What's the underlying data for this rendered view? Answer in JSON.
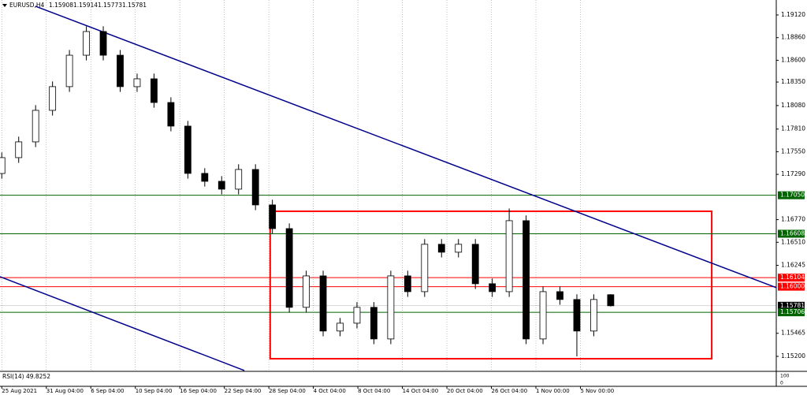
{
  "chart_data": {
    "type": "candlestick",
    "title": "EURUSD,H4",
    "header_values": {
      "open": 1.15908,
      "high": 1.15914,
      "low": 1.15773,
      "close": 1.15781
    },
    "header_labels": [
      "1.15908",
      "1.15914",
      "1.15773",
      "1.15781"
    ],
    "x": [
      0,
      0.38,
      0.76,
      1.14,
      1.52,
      1.9,
      2.28,
      2.66,
      3.04,
      3.42,
      3.8,
      4.18,
      4.56,
      4.94,
      5.32,
      5.7,
      6.08,
      6.46,
      6.84,
      7.22,
      7.6,
      7.98,
      8.36,
      8.74,
      9.12,
      9.5,
      9.88,
      10.26,
      10.64,
      11.02,
      11.4,
      11.78,
      12.16,
      12.54,
      12.92,
      13.3,
      13.68
    ],
    "open": [
      1.173,
      1.17482,
      1.17663,
      1.18025,
      1.18297,
      1.18658,
      1.1893,
      1.18658,
      1.18297,
      1.18387,
      1.18115,
      1.17844,
      1.17301,
      1.1721,
      1.1712,
      1.17346,
      1.16939,
      1.16667,
      1.15763,
      1.16124,
      1.15491,
      1.15581,
      1.15763,
      1.154,
      1.16124,
      1.15943,
      1.16487,
      1.16396,
      1.16487,
      1.16034,
      1.15943,
      1.16758,
      1.154,
      1.15943,
      1.15853,
      1.15491,
      1.15908
    ],
    "high": [
      1.17542,
      1.17723,
      1.18085,
      1.18357,
      1.18718,
      1.1899,
      1.1899,
      1.18718,
      1.18447,
      1.18447,
      1.18175,
      1.17904,
      1.17361,
      1.1727,
      1.17406,
      1.17406,
      1.16999,
      1.16727,
      1.16184,
      1.16184,
      1.15641,
      1.15823,
      1.15823,
      1.16184,
      1.16184,
      1.16547,
      1.16547,
      1.16547,
      1.16547,
      1.16094,
      1.16898,
      1.16818,
      1.16003,
      1.16003,
      1.15913,
      1.15913,
      1.15914
    ],
    "low": [
      1.1724,
      1.17422,
      1.17603,
      1.17965,
      1.18237,
      1.18598,
      1.18598,
      1.18237,
      1.18237,
      1.18055,
      1.17784,
      1.17241,
      1.1715,
      1.1706,
      1.1706,
      1.16879,
      1.16607,
      1.15703,
      1.15703,
      1.15431,
      1.15431,
      1.15521,
      1.1534,
      1.1534,
      1.15883,
      1.15883,
      1.16336,
      1.16336,
      1.15974,
      1.15883,
      1.15883,
      1.1534,
      1.1534,
      1.15793,
      1.152,
      1.15431,
      1.15773
    ],
    "close": [
      1.17482,
      1.17663,
      1.18025,
      1.18297,
      1.18658,
      1.1893,
      1.18658,
      1.18297,
      1.18387,
      1.18115,
      1.17844,
      1.17301,
      1.1721,
      1.1712,
      1.17346,
      1.16939,
      1.16667,
      1.15763,
      1.16124,
      1.15491,
      1.15581,
      1.15763,
      1.154,
      1.16124,
      1.15943,
      1.16487,
      1.16396,
      1.16487,
      1.16034,
      1.15943,
      1.16758,
      1.154,
      1.15943,
      1.15853,
      1.15491,
      1.15853,
      1.15781
    ],
    "up_color": "#ffffff",
    "down_color": "#000000",
    "wick_color": "#000000",
    "xlim": [
      -0.04,
      17.4
    ],
    "ylim": [
      1.15037,
      1.19292
    ],
    "xticks": [
      {
        "value": 0,
        "label": "25 Aug 2021"
      },
      {
        "value": 1,
        "label": "31 Aug 04:00"
      },
      {
        "value": 2,
        "label": "6 Sep 04:00"
      },
      {
        "value": 3,
        "label": "10 Sep 04:00"
      },
      {
        "value": 4,
        "label": "16 Sep 04:00"
      },
      {
        "value": 5,
        "label": "22 Sep 04:00"
      },
      {
        "value": 6,
        "label": "28 Sep 04:00"
      },
      {
        "value": 7,
        "label": "4 Oct 04:00"
      },
      {
        "value": 8,
        "label": "8 Oct 04:00"
      },
      {
        "value": 9,
        "label": "14 Oct 04:00"
      },
      {
        "value": 10,
        "label": "20 Oct 04:00"
      },
      {
        "value": 11,
        "label": "26 Oct 04:00"
      },
      {
        "value": 12,
        "label": "1 Nov 00:00"
      },
      {
        "value": 13,
        "label": "5 Nov 00:00"
      }
    ],
    "yticks": [
      {
        "value": 1.1912,
        "label": "1.19120"
      },
      {
        "value": 1.1886,
        "label": "1.18860"
      },
      {
        "value": 1.186,
        "label": "1.18600"
      },
      {
        "value": 1.1835,
        "label": "1.18350"
      },
      {
        "value": 1.1808,
        "label": "1.18080"
      },
      {
        "value": 1.1781,
        "label": "1.17810"
      },
      {
        "value": 1.1755,
        "label": "1.17550"
      },
      {
        "value": 1.1729,
        "label": "1.17290"
      },
      {
        "value": 1.1677,
        "label": "1.16770"
      },
      {
        "value": 1.1651,
        "label": "1.16510"
      },
      {
        "value": 1.16245,
        "label": "1.16245"
      },
      {
        "value": 1.15465,
        "label": "1.15465"
      },
      {
        "value": 1.152,
        "label": "1.15200"
      }
    ],
    "grid": true,
    "levels": [
      {
        "value": 1.1705,
        "label": "1.17050",
        "color": "#006400"
      },
      {
        "value": 1.16608,
        "label": "1.16608",
        "color": "#006400"
      },
      {
        "value": 1.16104,
        "label": "1.16104",
        "color": "#ff0000"
      },
      {
        "value": 1.16,
        "label": "1.16000",
        "color": "#ff0000"
      },
      {
        "value": 1.15781,
        "label": "1.15781",
        "color": "#000000"
      },
      {
        "value": 1.15706,
        "label": "1.15706",
        "color": "#006400"
      }
    ],
    "trendlines": [
      {
        "color": "#00008b",
        "x": [
          0.757,
          17.4
        ],
        "y": [
          1.1922,
          1.15989
        ]
      },
      {
        "color": "#00008b",
        "x": [
          -0.04,
          5.45
        ],
        "y": [
          1.16115,
          1.15038
        ]
      }
    ],
    "rectangle": {
      "color": "#ff0000",
      "x": [
        6.03,
        15.95
      ],
      "y": [
        1.16866,
        1.15173
      ]
    },
    "indicator": {
      "label": "RSI(14) 49.8252",
      "scale_labels": [
        "100",
        "0"
      ]
    }
  }
}
